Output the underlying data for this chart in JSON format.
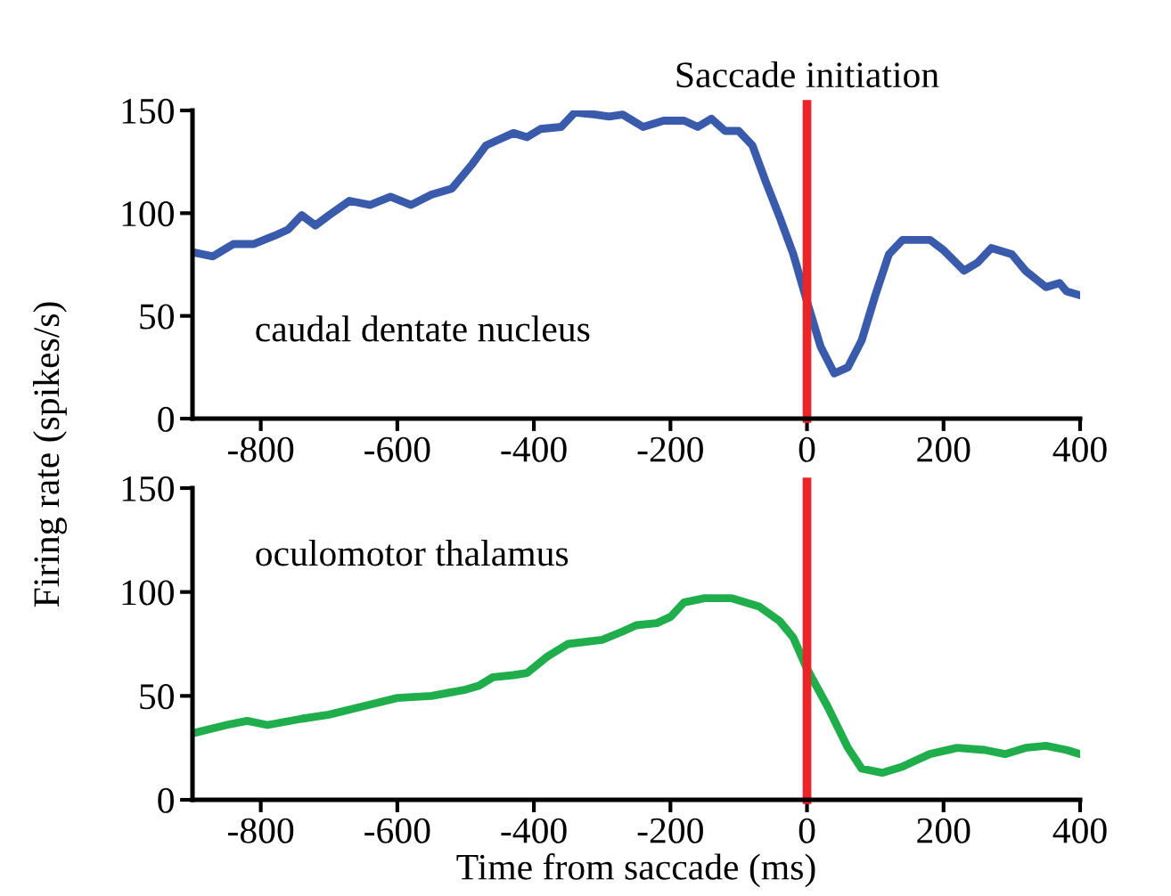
{
  "chart_data": [
    {
      "type": "line",
      "ylabel": "Firing rate (spikes/s)",
      "annotations": [
        "caudal dentate nucleus"
      ],
      "x": [
        -900,
        -870,
        -840,
        -810,
        -780,
        -760,
        -740,
        -720,
        -700,
        -670,
        -640,
        -610,
        -580,
        -550,
        -520,
        -490,
        -470,
        -450,
        -430,
        -410,
        -390,
        -360,
        -340,
        -310,
        -290,
        -270,
        -240,
        -210,
        -180,
        -160,
        -140,
        -120,
        -100,
        -80,
        -60,
        -40,
        -20,
        0,
        20,
        40,
        60,
        80,
        100,
        120,
        140,
        180,
        200,
        230,
        250,
        270,
        300,
        320,
        350,
        370,
        380,
        400
      ],
      "series": [
        {
          "color": "#3a5bab",
          "values": [
            81,
            79,
            85,
            85,
            89,
            92,
            99,
            94,
            99,
            106,
            104,
            108,
            104,
            109,
            112,
            124,
            133,
            136,
            139,
            137,
            141,
            142,
            149,
            148,
            147,
            148,
            142,
            145,
            145,
            142,
            146,
            140,
            140,
            133,
            115,
            98,
            80,
            57,
            35,
            22,
            25,
            38,
            60,
            80,
            87,
            87,
            82,
            72,
            76,
            83,
            80,
            72,
            64,
            66,
            62,
            60
          ]
        }
      ],
      "xlim": [
        -900,
        400
      ],
      "xticks": [
        -800,
        -600,
        -400,
        -200,
        0,
        200,
        400
      ],
      "ylim": [
        0,
        150
      ],
      "yticks": [
        0,
        50,
        100,
        150
      ],
      "ref_lines": [
        {
          "axis": "x",
          "value": 0,
          "label": "Saccade initiation",
          "color": "#e8262a"
        }
      ],
      "grid": false,
      "legend": false,
      "marker": "none",
      "line_style": "solid"
    },
    {
      "type": "line",
      "xlabel": "Time from saccade (ms)",
      "annotations": [
        "oculomotor thalamus"
      ],
      "x": [
        -900,
        -850,
        -820,
        -790,
        -740,
        -700,
        -650,
        -600,
        -550,
        -500,
        -480,
        -460,
        -430,
        -410,
        -380,
        -350,
        -300,
        -270,
        -250,
        -220,
        -200,
        -180,
        -150,
        -110,
        -70,
        -40,
        -20,
        0,
        30,
        60,
        80,
        110,
        140,
        180,
        220,
        260,
        290,
        320,
        350,
        380,
        400
      ],
      "series": [
        {
          "color": "#1fae4b",
          "values": [
            32,
            36,
            38,
            36,
            39,
            41,
            45,
            49,
            50,
            53,
            55,
            59,
            60,
            61,
            69,
            75,
            77,
            81,
            84,
            85,
            88,
            95,
            97,
            97,
            93,
            86,
            78,
            63,
            45,
            25,
            15,
            13,
            16,
            22,
            25,
            24,
            22,
            25,
            26,
            24,
            22
          ]
        }
      ],
      "xlim": [
        -900,
        400
      ],
      "xticks": [
        -800,
        -600,
        -400,
        -200,
        0,
        200,
        400
      ],
      "ylim": [
        0,
        150
      ],
      "yticks": [
        0,
        50,
        100,
        150
      ],
      "ref_lines": [
        {
          "axis": "x",
          "value": 0,
          "label": null,
          "color": "#e8262a"
        }
      ],
      "grid": false,
      "legend": false,
      "marker": "none",
      "line_style": "solid"
    }
  ]
}
